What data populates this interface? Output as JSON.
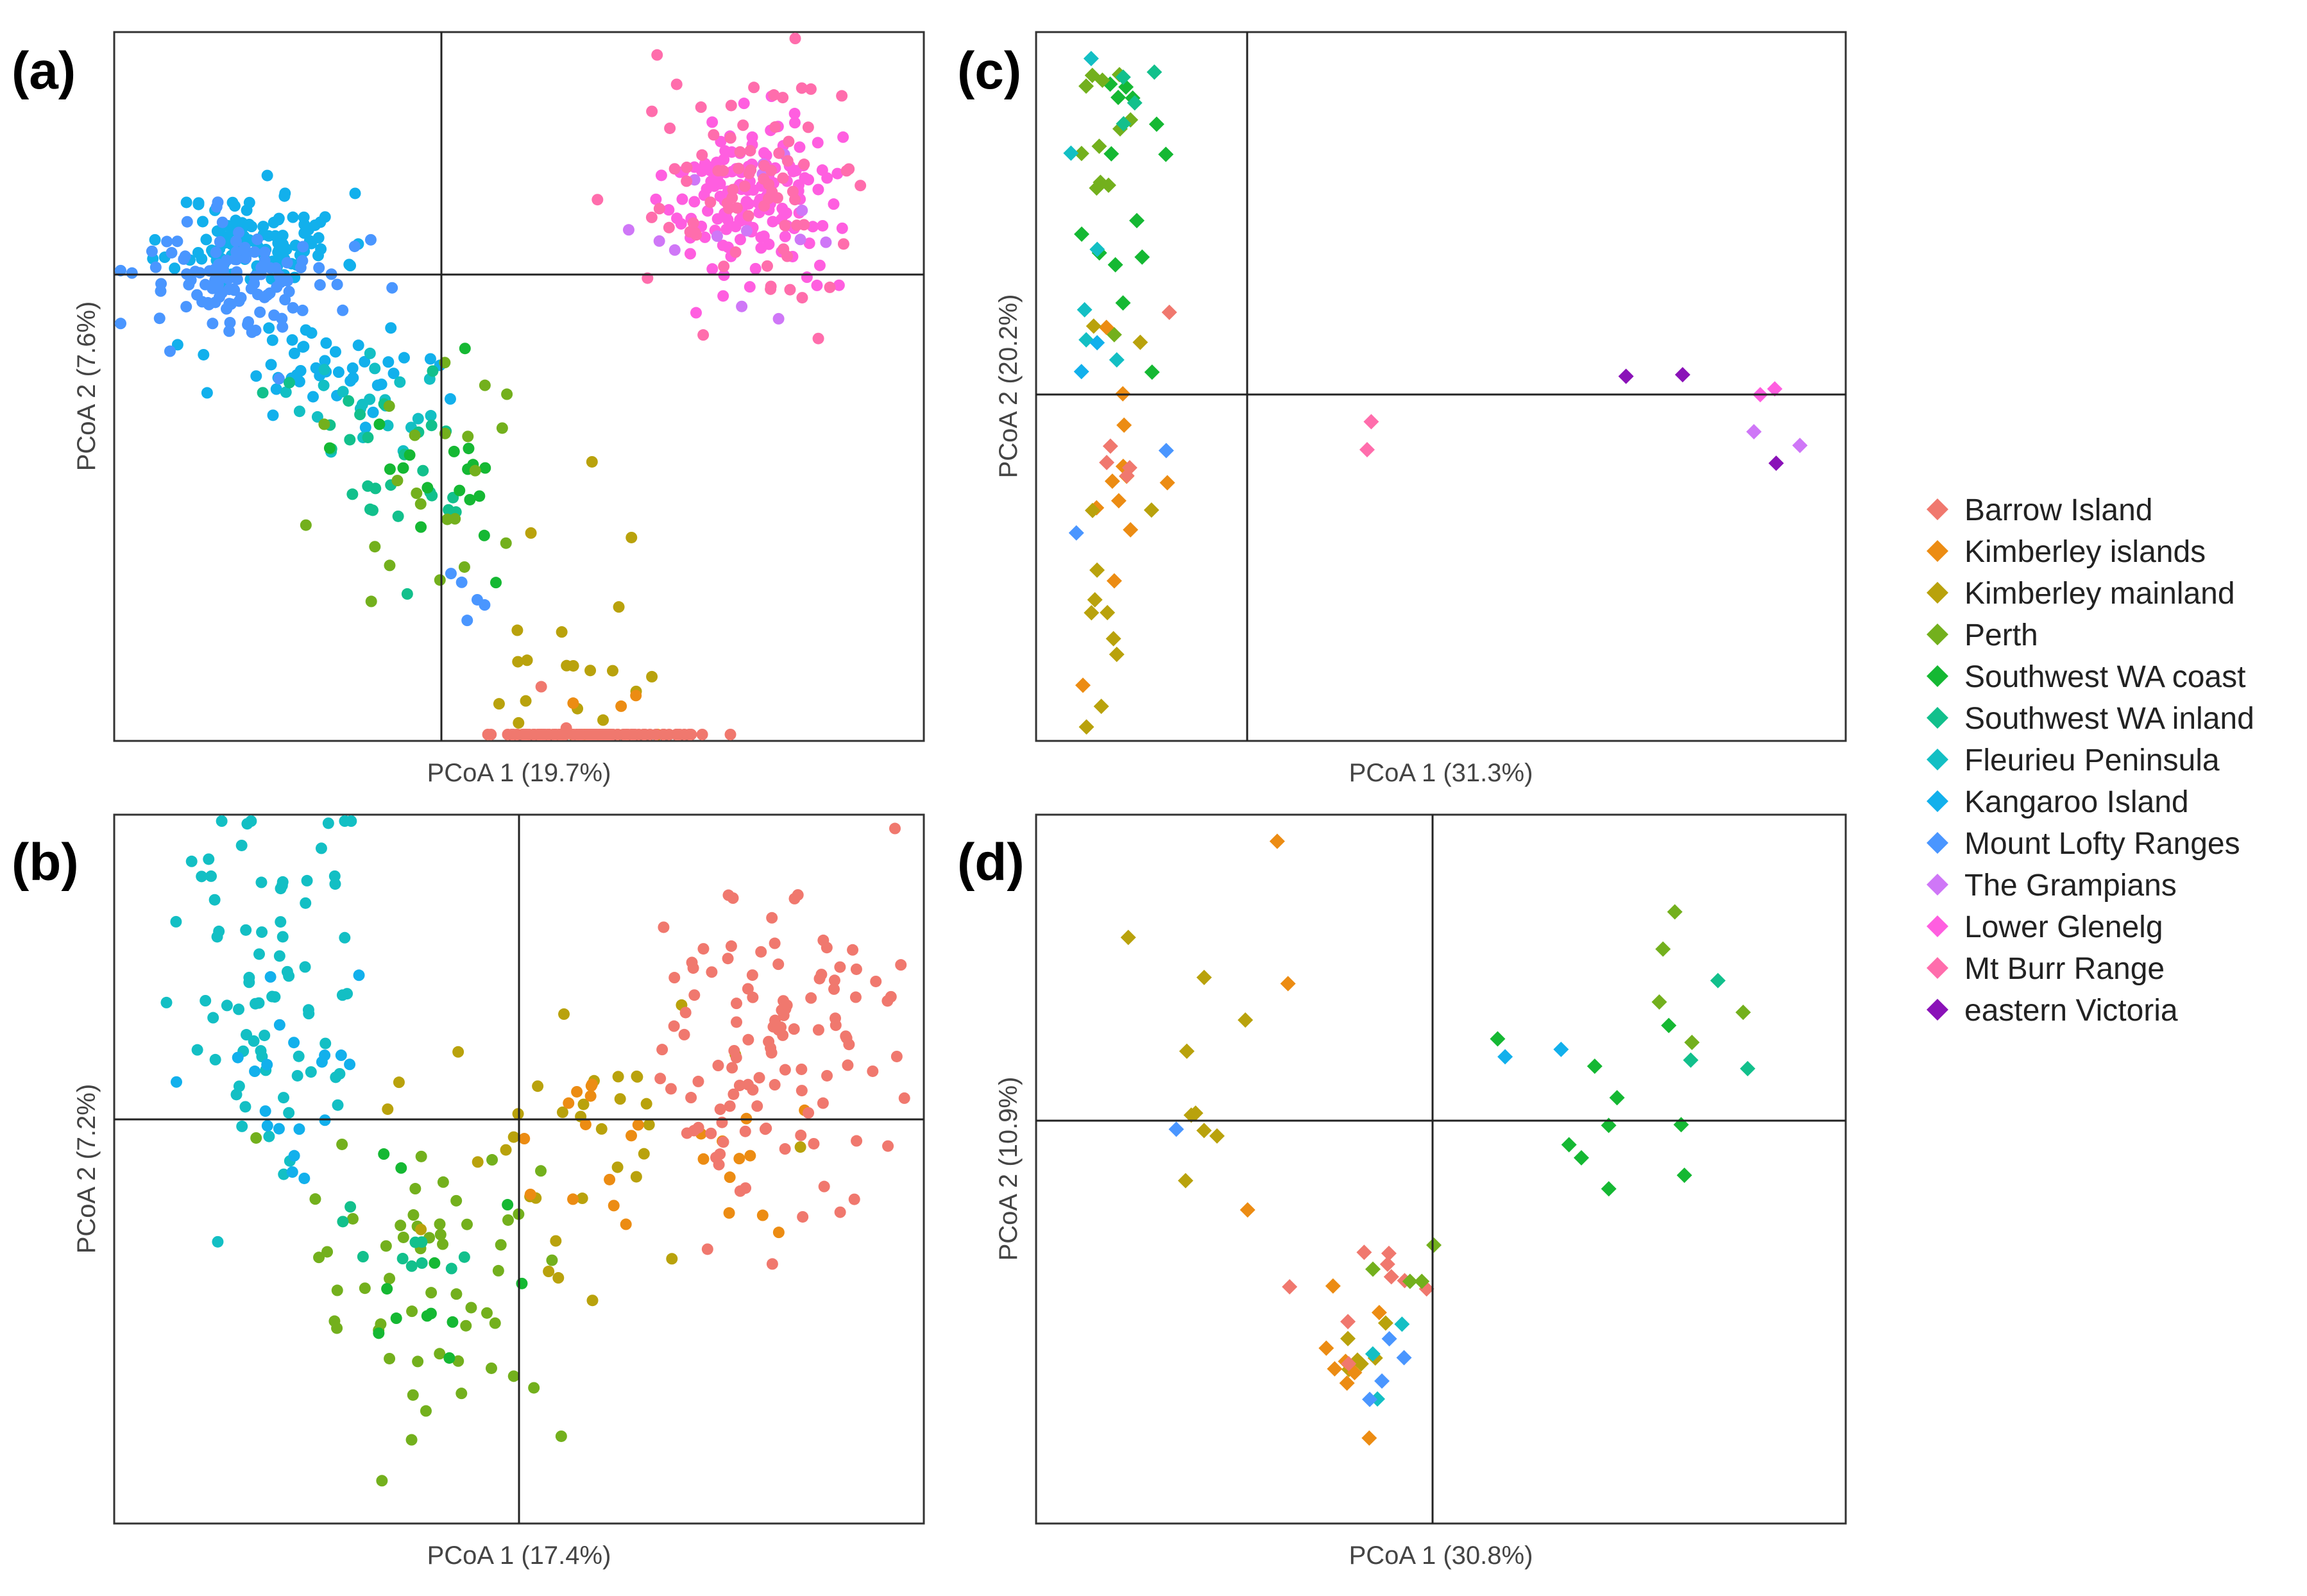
{
  "chart_data": [
    {
      "type": "scatter",
      "panel": "(a)",
      "xlabel": "PCoA 1 (19.7%)",
      "ylabel": "PCoA 2 (7.6%)",
      "xlim": [
        -1,
        1.46
      ],
      "ylim": [
        -1,
        1
      ],
      "marker": "circle",
      "series": [
        {
          "name": "Kangaroo Island",
          "seed": 11,
          "clusters": [
            {
              "n": 110,
              "cx": -0.58,
              "cy": 0.42,
              "sx": 0.13,
              "sy": 0.07
            },
            {
              "n": 45,
              "cx": -0.38,
              "cy": 0.05,
              "sx": 0.16,
              "sy": 0.08
            }
          ]
        },
        {
          "name": "Mount Lofty Ranges",
          "seed": 12,
          "clusters": [
            {
              "n": 110,
              "cx": -0.62,
              "cy": 0.3,
              "sx": 0.16,
              "sy": 0.09
            },
            {
              "n": 5,
              "cx": 0.05,
              "cy": -0.6,
              "sx": 0.05,
              "sy": 0.05
            }
          ]
        },
        {
          "name": "Fleurieu Peninsula",
          "seed": 13,
          "clusters": [
            {
              "n": 22,
              "cx": -0.25,
              "cy": -0.05,
              "sx": 0.15,
              "sy": 0.07
            }
          ]
        },
        {
          "name": "Southwest WA inland",
          "seed": 14,
          "clusters": [
            {
              "n": 28,
              "cx": -0.1,
              "cy": -0.18,
              "sx": 0.16,
              "sy": 0.13
            }
          ]
        },
        {
          "name": "Southwest WA coast",
          "seed": 15,
          "clusters": [
            {
              "n": 18,
              "cx": 0.02,
              "cy": -0.25,
              "sx": 0.12,
              "sy": 0.14
            }
          ]
        },
        {
          "name": "Perth",
          "seed": 16,
          "clusters": [
            {
              "n": 22,
              "cx": -0.05,
              "cy": -0.3,
              "sx": 0.18,
              "sy": 0.2
            }
          ]
        },
        {
          "name": "Kimberley mainland",
          "seed": 17,
          "clusters": [
            {
              "n": 20,
              "cx": 0.42,
              "cy": -0.75,
              "sx": 0.14,
              "sy": 0.2
            }
          ]
        },
        {
          "name": "Kimberley islands",
          "seed": 18,
          "clusters": [
            {
              "n": 14,
              "cx": 0.45,
              "cy": -1.1,
              "sx": 0.08,
              "sy": 0.12
            }
          ]
        },
        {
          "name": "Barrow Island",
          "seed": 19,
          "clusters": [
            {
              "n": 115,
              "cx": 0.45,
              "cy": -1.45,
              "sx": 0.16,
              "sy": 0.22
            }
          ]
        },
        {
          "name": "Lower Glenelg",
          "seed": 20,
          "clusters": [
            {
              "n": 150,
              "cx": 0.95,
              "cy": 0.55,
              "sx": 0.13,
              "sy": 0.14
            }
          ]
        },
        {
          "name": "The Grampians",
          "seed": 21,
          "clusters": [
            {
              "n": 14,
              "cx": 0.9,
              "cy": 0.45,
              "sx": 0.2,
              "sy": 0.15
            }
          ]
        },
        {
          "name": "Mt Burr Range",
          "seed": 22,
          "clusters": [
            {
              "n": 80,
              "cx": 0.92,
              "cy": 0.6,
              "sx": 0.15,
              "sy": 0.17
            }
          ]
        }
      ]
    },
    {
      "type": "scatter",
      "panel": "(b)",
      "xlabel": "PCoA 1 (17.4%)",
      "ylabel": "PCoA 2 (7.2%)",
      "xlim": [
        -1.5,
        1.5
      ],
      "ylim": [
        -1.5,
        1.05
      ],
      "marker": "circle",
      "series": [
        {
          "name": "Fleurieu Peninsula",
          "seed": 31,
          "clusters": [
            {
              "n": 75,
              "cx": -0.95,
              "cy": 0.45,
              "sx": 0.18,
              "sy": 0.38
            }
          ]
        },
        {
          "name": "Kangaroo Island",
          "seed": 32,
          "clusters": [
            {
              "n": 20,
              "cx": -0.8,
              "cy": 0.1,
              "sx": 0.18,
              "sy": 0.2
            }
          ]
        },
        {
          "name": "Perth",
          "seed": 33,
          "clusters": [
            {
              "n": 55,
              "cx": -0.35,
              "cy": -0.7,
              "sx": 0.22,
              "sy": 0.3
            }
          ]
        },
        {
          "name": "Southwest WA coast",
          "seed": 34,
          "clusters": [
            {
              "n": 12,
              "cx": -0.35,
              "cy": -0.65,
              "sx": 0.15,
              "sy": 0.25
            }
          ]
        },
        {
          "name": "Southwest WA inland",
          "seed": 35,
          "clusters": [
            {
              "n": 10,
              "cx": -0.4,
              "cy": -0.5,
              "sx": 0.15,
              "sy": 0.2
            }
          ]
        },
        {
          "name": "Kimberley mainland",
          "seed": 36,
          "clusters": [
            {
              "n": 35,
              "cx": 0.25,
              "cy": -0.1,
              "sx": 0.3,
              "sy": 0.25
            }
          ]
        },
        {
          "name": "Kimberley islands",
          "seed": 37,
          "clusters": [
            {
              "n": 25,
              "cx": 0.55,
              "cy": -0.2,
              "sx": 0.25,
              "sy": 0.15
            }
          ]
        },
        {
          "name": "Barrow Island",
          "seed": 38,
          "clusters": [
            {
              "n": 115,
              "cx": 0.95,
              "cy": 0.25,
              "sx": 0.25,
              "sy": 0.3
            }
          ]
        }
      ]
    },
    {
      "type": "scatter",
      "panel": "(c)",
      "xlabel": "PCoA 1 (31.3%)",
      "ylabel": "PCoA 2 (20.2%)",
      "xlim": [
        -0.5,
        3.1
      ],
      "ylim": [
        -1.2,
        1.2
      ],
      "marker": "diamond",
      "series": [
        {
          "name": "Southwest WA coast",
          "seed": 41,
          "clusters": [
            {
              "n": 14,
              "cx": -0.15,
              "cy": 0.75,
              "sx": 0.12,
              "sy": 0.3
            }
          ]
        },
        {
          "name": "Perth",
          "seed": 42,
          "clusters": [
            {
              "n": 12,
              "cx": -0.3,
              "cy": 0.85,
              "sx": 0.1,
              "sy": 0.25
            }
          ]
        },
        {
          "name": "Southwest WA inland",
          "seed": 43,
          "clusters": [
            {
              "n": 4,
              "cx": -0.2,
              "cy": 1.0,
              "sx": 0.15,
              "sy": 0.15
            }
          ]
        },
        {
          "name": "Fleurieu Peninsula",
          "seed": 44,
          "clusters": [
            {
              "n": 6,
              "cx": -0.3,
              "cy": 0.3,
              "sx": 0.1,
              "sy": 0.35
            }
          ]
        },
        {
          "name": "Kangaroo Island",
          "seed": 45,
          "clusters": [
            {
              "n": 2,
              "cx": -0.25,
              "cy": 0.1,
              "sx": 0.08,
              "sy": 0.1
            }
          ]
        },
        {
          "name": "Mount Lofty Ranges",
          "seed": 46,
          "clusters": [
            {
              "n": 2,
              "cx": -0.2,
              "cy": -0.3,
              "sx": 0.1,
              "sy": 0.2
            }
          ]
        },
        {
          "name": "Kimberley islands",
          "seed": 47,
          "clusters": [
            {
              "n": 12,
              "cx": -0.2,
              "cy": -0.25,
              "sx": 0.08,
              "sy": 0.25
            }
          ]
        },
        {
          "name": "Kimberley mainland",
          "seed": 48,
          "clusters": [
            {
              "n": 12,
              "cx": -0.2,
              "cy": -0.5,
              "sx": 0.08,
              "sy": 0.35
            }
          ]
        },
        {
          "name": "Barrow Island",
          "seed": 49,
          "clusters": [
            {
              "n": 5,
              "cx": -0.1,
              "cy": -0.1,
              "sx": 0.1,
              "sy": 0.15
            }
          ]
        },
        {
          "name": "Mt Burr Range",
          "seed": 50,
          "clusters": [
            {
              "n": 2,
              "cx": 0.9,
              "cy": -0.1,
              "sx": 0.1,
              "sy": 0.05
            }
          ]
        },
        {
          "name": "Lower Glenelg",
          "seed": 51,
          "clusters": [
            {
              "n": 2,
              "cx": 2.75,
              "cy": 0.05,
              "sx": 0.05,
              "sy": 0.08
            }
          ]
        },
        {
          "name": "The Grampians",
          "seed": 52,
          "clusters": [
            {
              "n": 2,
              "cx": 2.85,
              "cy": -0.15,
              "sx": 0.05,
              "sy": 0.05
            }
          ]
        },
        {
          "name": "eastern Victoria",
          "seed": 53,
          "clusters": [
            {
              "n": 3,
              "cx": 2.4,
              "cy": -0.05,
              "sx": 0.3,
              "sy": 0.15
            }
          ]
        }
      ]
    },
    {
      "type": "scatter",
      "panel": "(d)",
      "xlabel": "PCoA 1 (30.8%)",
      "ylabel": "PCoA 2 (10.9%)",
      "xlim": [
        -0.9,
        1.15
      ],
      "ylim": [
        -0.8,
        0.6
      ],
      "marker": "diamond",
      "series": [
        {
          "name": "Kimberley mainland",
          "seed": 61,
          "clusters": [
            {
              "n": 9,
              "cx": -0.55,
              "cy": 0.15,
              "sx": 0.1,
              "sy": 0.15
            },
            {
              "n": 6,
              "cx": -0.1,
              "cy": -0.45,
              "sx": 0.06,
              "sy": 0.08
            }
          ]
        },
        {
          "name": "Kimberley islands",
          "seed": 62,
          "clusters": [
            {
              "n": 3,
              "cx": -0.5,
              "cy": 0.25,
              "sx": 0.15,
              "sy": 0.2
            },
            {
              "n": 8,
              "cx": -0.12,
              "cy": -0.45,
              "sx": 0.04,
              "sy": 0.12
            }
          ]
        },
        {
          "name": "Barrow Island",
          "seed": 63,
          "clusters": [
            {
              "n": 9,
              "cx": -0.1,
              "cy": -0.35,
              "sx": 0.08,
              "sy": 0.08
            }
          ]
        },
        {
          "name": "Perth",
          "seed": 64,
          "clusters": [
            {
              "n": 4,
              "cx": 0.05,
              "cy": -0.3,
              "sx": 0.04,
              "sy": 0.05
            },
            {
              "n": 5,
              "cx": 0.8,
              "cy": 0.3,
              "sx": 0.1,
              "sy": 0.15
            }
          ]
        },
        {
          "name": "Southwest WA coast",
          "seed": 65,
          "clusters": [
            {
              "n": 10,
              "cx": 0.55,
              "cy": -0.05,
              "sx": 0.22,
              "sy": 0.18
            }
          ]
        },
        {
          "name": "Southwest WA inland",
          "seed": 66,
          "clusters": [
            {
              "n": 3,
              "cx": 0.85,
              "cy": 0.05,
              "sx": 0.05,
              "sy": 0.1
            }
          ]
        },
        {
          "name": "Fleurieu Peninsula",
          "seed": 67,
          "clusters": [
            {
              "n": 3,
              "cx": 0.1,
              "cy": -0.5,
              "sx": 0.15,
              "sy": 0.05
            }
          ]
        },
        {
          "name": "Kangaroo Island",
          "seed": 68,
          "clusters": [
            {
              "n": 2,
              "cx": 0.6,
              "cy": 0.1,
              "sx": 0.2,
              "sy": 0.05
            }
          ]
        },
        {
          "name": "Mount Lofty Ranges",
          "seed": 69,
          "clusters": [
            {
              "n": 4,
              "cx": 0.02,
              "cy": -0.55,
              "sx": 0.03,
              "sy": 0.05
            },
            {
              "n": 1,
              "cx": -0.55,
              "cy": -0.02,
              "sx": 0.01,
              "sy": 0.01
            }
          ]
        }
      ]
    }
  ],
  "legend": {
    "items": [
      {
        "label": "Barrow Island",
        "color": "#f0786e"
      },
      {
        "label": "Kimberley islands",
        "color": "#ec8c13"
      },
      {
        "label": "Kimberley mainland",
        "color": "#b9a20c"
      },
      {
        "label": "Perth",
        "color": "#73b01d"
      },
      {
        "label": "Southwest WA coast",
        "color": "#15b833"
      },
      {
        "label": "Southwest WA inland",
        "color": "#12c08c"
      },
      {
        "label": "Fleurieu Peninsula",
        "color": "#13bfc4"
      },
      {
        "label": "Kangaroo Island",
        "color": "#12b0ec"
      },
      {
        "label": "Mount Lofty Ranges",
        "color": "#4a96ff"
      },
      {
        "label": "The Grampians",
        "color": "#cf77f7"
      },
      {
        "label": "Lower Glenelg",
        "color": "#ff5ee0"
      },
      {
        "label": "Mt Burr Range",
        "color": "#ff6dac"
      },
      {
        "label": "eastern Victoria",
        "color": "#8a12b8"
      }
    ]
  }
}
